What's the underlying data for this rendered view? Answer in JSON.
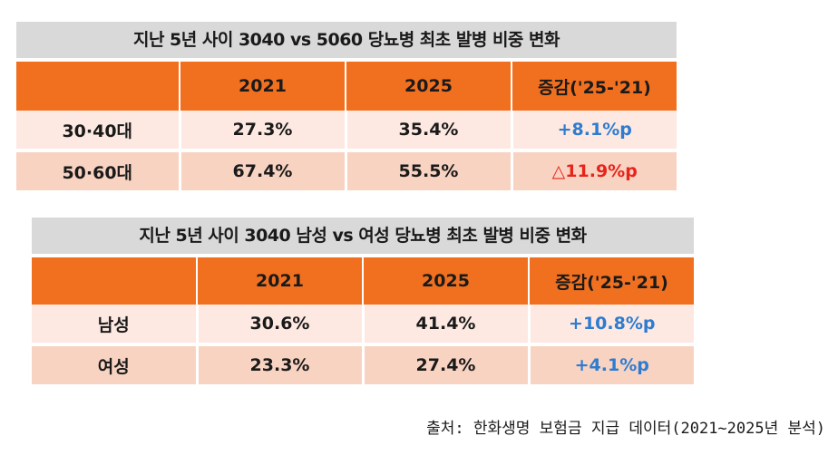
{
  "table1": {
    "title": "지난 5년 사이 3040 vs 5060 당뇨병 최초 발병 비중 변화",
    "headers": [
      "",
      "2021",
      "2025",
      "증감('25-'21)"
    ],
    "rows": [
      {
        "label": "30·40대",
        "v2021": "27.3%",
        "v2025": "35.4%",
        "change": "+8.1%p"
      },
      {
        "label": "50·60대",
        "v2021": "67.4%",
        "v2025": "55.5%",
        "change": "△11.9%p"
      }
    ]
  },
  "table2": {
    "title": "지난 5년 사이 3040 남성 vs 여성 당뇨병 최초 발병 비중 변화",
    "headers": [
      "",
      "2021",
      "2025",
      "증감('25-'21)"
    ],
    "rows": [
      {
        "label": "남성",
        "v2021": "30.6%",
        "v2025": "41.4%",
        "change": "+10.8%p"
      },
      {
        "label": "여성",
        "v2021": "23.3%",
        "v2025": "27.4%",
        "change": "+4.1%p"
      }
    ]
  },
  "source": "출처: 한화생명 보험금 지급 데이터(2021~2025년 분석)",
  "colors": {
    "header": "#f07020",
    "increase": "#2e7cd0",
    "decrease": "#e8241c"
  }
}
